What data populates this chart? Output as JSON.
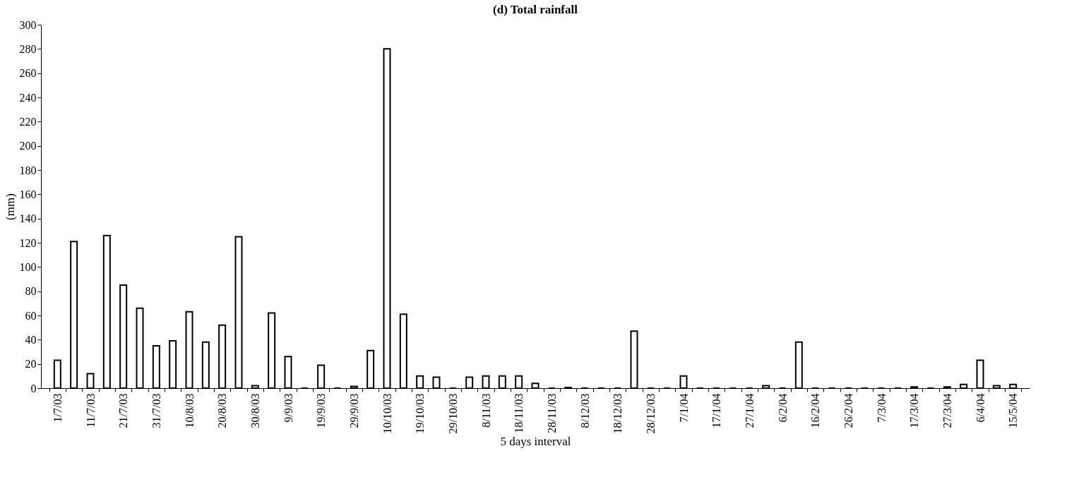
{
  "chart_data": {
    "type": "bar",
    "title": "(d) Total rainfall",
    "xlabel": "5 days interval",
    "ylabel": "(mm)",
    "categories": [
      "1/7/03",
      null,
      "11/7/03",
      null,
      "21/7/03",
      null,
      "31/7/03",
      null,
      "10/8/03",
      null,
      "20/8/03",
      null,
      "30/8/03",
      null,
      "9/9/03",
      null,
      "19/9/03",
      null,
      "29/9/03",
      null,
      "10/10/03",
      null,
      "19/10/03",
      null,
      "29/10/03",
      null,
      "8/11/03",
      null,
      "18/11/03",
      null,
      "28/11/03",
      null,
      "8/12/03",
      null,
      "18/12/03",
      null,
      "28/12/03",
      null,
      "7/1/04",
      null,
      "17/1/04",
      null,
      "27/1/04",
      null,
      "6/2/04",
      null,
      "16/2/04",
      null,
      "26/2/04",
      null,
      "7/3/04",
      null,
      "17/3/04",
      null,
      "27/3/04",
      null,
      "6/4/04",
      null,
      "15/5/04"
    ],
    "values": [
      23,
      121,
      12,
      126,
      85,
      66,
      35,
      39,
      63,
      38,
      52,
      125,
      2,
      62,
      26,
      0,
      19,
      0,
      1.5,
      31,
      280,
      61,
      10,
      9,
      0,
      9,
      10,
      10,
      10,
      4,
      0,
      0.5,
      0,
      0,
      0,
      47,
      0,
      0,
      10,
      0,
      0,
      0,
      0,
      2,
      0,
      38,
      0,
      0,
      0,
      0,
      0,
      0,
      1,
      0,
      1,
      3,
      23,
      2,
      3
    ],
    "color": "#000000",
    "ylim": [
      0,
      300
    ],
    "yticks": [
      0,
      20,
      40,
      60,
      80,
      100,
      120,
      140,
      160,
      180,
      200,
      220,
      240,
      260,
      280,
      300
    ],
    "grid": false
  }
}
